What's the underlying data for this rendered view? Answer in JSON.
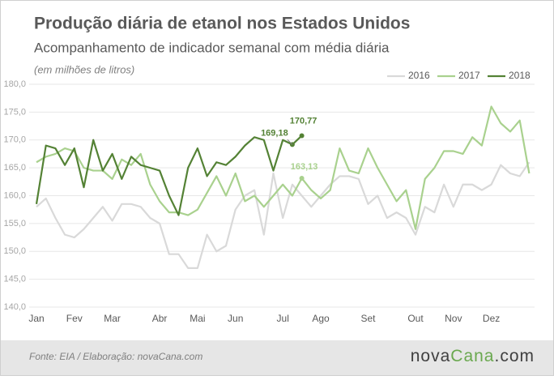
{
  "chart_data": {
    "type": "line",
    "title": "Produção diária de etanol nos Estados Unidos",
    "subtitle": "Acompanhamento de indicador semanal com média diária",
    "unit": "(em milhões de litros)",
    "categories": [
      "Jan",
      null,
      null,
      null,
      "Fev",
      null,
      null,
      null,
      "Mar",
      null,
      null,
      null,
      null,
      "Abr",
      null,
      null,
      null,
      "Mai",
      null,
      null,
      null,
      "Jun",
      null,
      null,
      null,
      null,
      "Jul",
      null,
      null,
      null,
      "Ago",
      null,
      null,
      null,
      null,
      "Set",
      null,
      null,
      null,
      null,
      "Out",
      null,
      null,
      null,
      "Nov",
      null,
      null,
      null,
      "Dez",
      null,
      null,
      null,
      null
    ],
    "series": [
      {
        "name": "2016",
        "color": "#d9d9d9",
        "values": [
          158,
          159.5,
          156,
          153,
          152.5,
          154,
          156,
          158,
          155.5,
          158.5,
          158.5,
          158,
          156,
          155,
          149.5,
          149.5,
          147,
          147,
          153,
          150,
          151,
          157.5,
          160,
          161,
          153,
          164,
          156,
          162,
          160,
          158,
          160,
          162,
          163.5,
          163.5,
          163,
          158.5,
          160,
          156,
          157,
          156,
          153,
          158,
          157,
          162,
          158,
          162,
          162,
          161,
          162,
          165.5,
          164,
          163.5,
          166
        ]
      },
      {
        "name": "2017",
        "color": "#a9d18e",
        "values": [
          166,
          167,
          167.5,
          168.5,
          168,
          165,
          164.5,
          164.5,
          163,
          166.5,
          165.5,
          167.5,
          162,
          159,
          157,
          157,
          156.5,
          157.5,
          160.5,
          163.5,
          160,
          164,
          159,
          160,
          158,
          160,
          162,
          160,
          163.13,
          161,
          159.5,
          161,
          168.5,
          164.5,
          164,
          168.5,
          165,
          162,
          159,
          161,
          154,
          163,
          165,
          168,
          168,
          167.5,
          170.5,
          169,
          176,
          173,
          171.5,
          173.5,
          164
        ],
        "value_labels": [
          null,
          null,
          null,
          null,
          null,
          null,
          null,
          null,
          null,
          null,
          null,
          null,
          null,
          null,
          null,
          null,
          null,
          null,
          null,
          null,
          null,
          null,
          null,
          null,
          null,
          null,
          null,
          null,
          "163,13",
          null,
          null,
          null,
          null,
          null,
          null,
          null,
          null,
          null,
          null,
          null,
          null,
          null,
          null,
          null,
          null,
          null,
          null,
          null,
          null,
          null,
          null,
          null,
          null
        ]
      },
      {
        "name": "2018",
        "color": "#548235",
        "values": [
          158.5,
          169,
          168.5,
          165.5,
          168.5,
          161.5,
          170,
          164.5,
          167.5,
          163,
          167,
          165.5,
          165,
          164.5,
          160,
          156.5,
          165,
          168.5,
          163.5,
          166,
          165.5,
          167,
          169,
          170.5,
          170,
          164.5,
          170,
          169.18,
          170.77,
          null,
          null,
          null,
          null,
          null,
          null,
          null,
          null,
          null,
          null,
          null,
          null,
          null,
          null,
          null,
          null,
          null,
          null,
          null,
          null,
          null,
          null,
          null,
          null
        ],
        "value_labels": [
          null,
          null,
          null,
          null,
          null,
          null,
          null,
          null,
          null,
          null,
          null,
          null,
          null,
          null,
          null,
          null,
          null,
          null,
          null,
          null,
          null,
          null,
          null,
          null,
          null,
          null,
          null,
          "169,18",
          "170,77",
          null,
          null,
          null,
          null,
          null,
          null,
          null,
          null,
          null,
          null,
          null,
          null,
          null,
          null,
          null,
          null,
          null,
          null,
          null,
          null,
          null,
          null,
          null,
          null
        ]
      }
    ],
    "ylim": [
      140,
      180
    ],
    "yticks": [
      {
        "value": 140,
        "label": "140,0"
      },
      {
        "value": 145,
        "label": "145,0"
      },
      {
        "value": 150,
        "label": "150,0"
      },
      {
        "value": 155,
        "label": "155,0"
      },
      {
        "value": 160,
        "label": "160,0"
      },
      {
        "value": 165,
        "label": "165,0"
      },
      {
        "value": 170,
        "label": "170,0"
      },
      {
        "value": 175,
        "label": "175,0"
      },
      {
        "value": 180,
        "label": "180,0"
      }
    ],
    "grid": true,
    "legend": "top-right"
  },
  "source": "Fonte: EIA / Elaboração: novaCana.com",
  "logo": [
    "nova",
    "Cana",
    ".com"
  ]
}
